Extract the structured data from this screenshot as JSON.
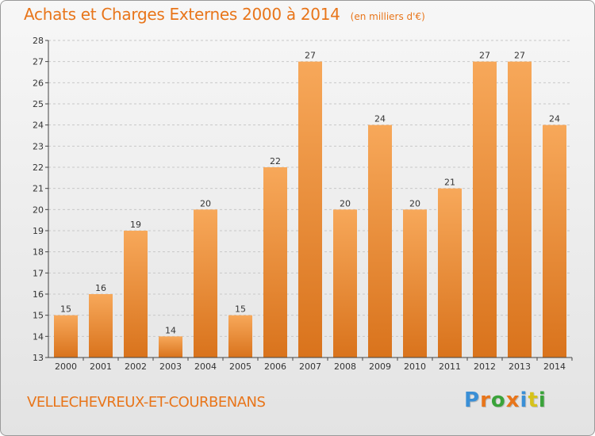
{
  "header": {
    "title": "Achats et Charges Externes 2000 à 2014",
    "subtitle": "(en milliers d'€)"
  },
  "footer": {
    "commune": "VELLECHEVREUX-ET-COURBENANS",
    "brand": "Proxiti",
    "brand_letters": [
      {
        "ch": "P",
        "color": "#3a8fd6"
      },
      {
        "ch": "r",
        "color": "#e8751a"
      },
      {
        "ch": "o",
        "color": "#3aa33a"
      },
      {
        "ch": "x",
        "color": "#e8751a"
      },
      {
        "ch": "i",
        "color": "#3a8fd6"
      },
      {
        "ch": "t",
        "color": "#d6c21a"
      },
      {
        "ch": "i",
        "color": "#3aa33a"
      }
    ]
  },
  "chart_data": {
    "type": "bar",
    "title": "Achats et Charges Externes 2000 à 2014",
    "subtitle": "(en milliers d'€)",
    "categories": [
      "2000",
      "2001",
      "2002",
      "2003",
      "2004",
      "2005",
      "2006",
      "2007",
      "2008",
      "2009",
      "2010",
      "2011",
      "2012",
      "2013",
      "2014"
    ],
    "values": [
      15,
      16,
      19,
      14,
      20,
      15,
      22,
      27,
      20,
      24,
      20,
      21,
      27,
      27,
      24
    ],
    "ylim": [
      13,
      28
    ],
    "yticks": [
      13,
      14,
      15,
      16,
      17,
      18,
      19,
      20,
      21,
      22,
      23,
      24,
      25,
      26,
      27,
      28
    ],
    "grid": "horizontal dashed",
    "data_labels": true,
    "colors": {
      "bar_top": "#f7a85a",
      "bar_bottom": "#d9731c",
      "label": "#e8751a",
      "axis": "#444444"
    }
  }
}
